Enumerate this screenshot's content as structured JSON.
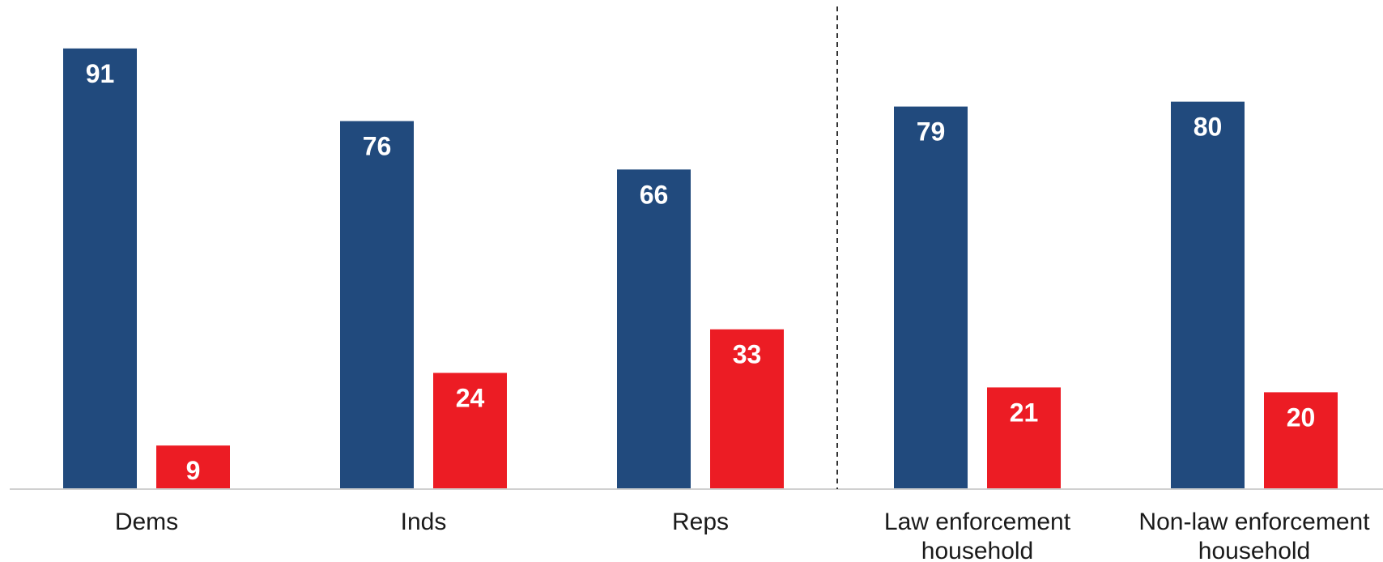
{
  "chart_data": {
    "type": "bar",
    "categories": [
      [
        "Dems"
      ],
      [
        "Inds"
      ],
      [
        "Reps"
      ],
      [
        "Law enforcement",
        "household"
      ],
      [
        "Non-law enforcement",
        "household"
      ]
    ],
    "series": [
      {
        "values": [
          91,
          76,
          66,
          79,
          80
        ],
        "color": "#214a7d"
      },
      {
        "values": [
          9,
          24,
          33,
          21,
          20
        ],
        "color": "#ec1c24"
      }
    ],
    "ylim": [
      0,
      100
    ],
    "grid": false,
    "legend": "none",
    "separator_after_category_index": 2
  }
}
